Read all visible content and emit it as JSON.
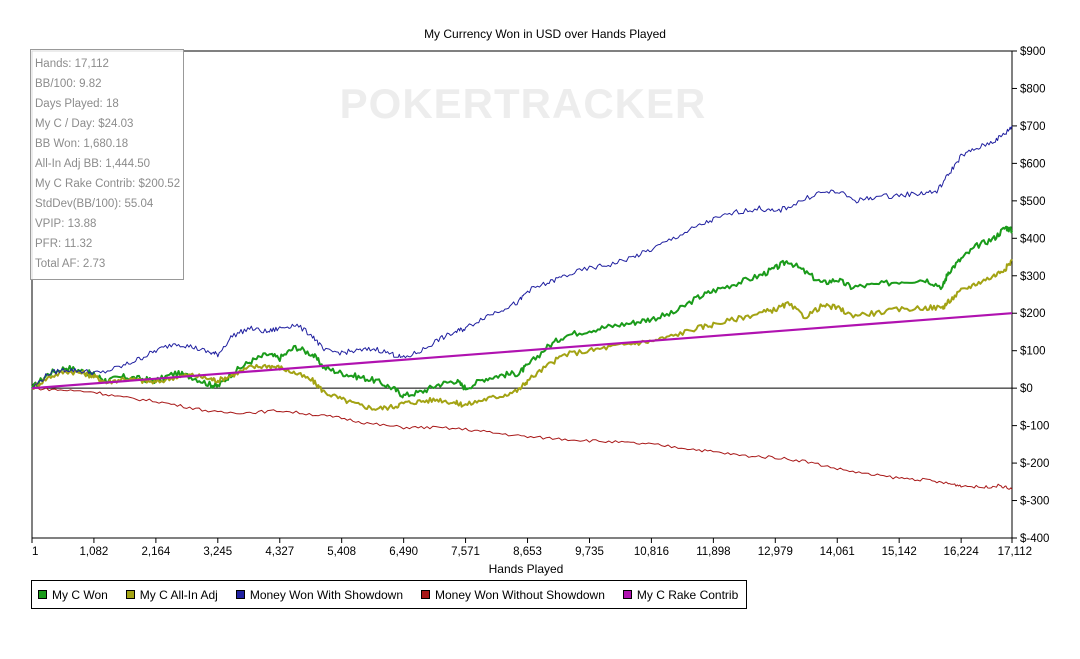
{
  "chart_data": {
    "type": "line",
    "title": "My Currency Won in USD over Hands Played",
    "xlabel": "Hands Played",
    "ylabel": "",
    "xlim": [
      1,
      17112
    ],
    "ylim": [
      -400,
      900
    ],
    "x_ticks": [
      1,
      1082,
      2164,
      3245,
      4327,
      5408,
      6490,
      7571,
      8653,
      9735,
      10816,
      11898,
      12979,
      14061,
      15142,
      16224,
      17112
    ],
    "x_tick_labels": [
      "1",
      "1,082",
      "2,164",
      "3,245",
      "4,327",
      "5,408",
      "6,490",
      "7,571",
      "8,653",
      "9,735",
      "10,816",
      "11,898",
      "12,979",
      "14,061",
      "15,142",
      "16,224",
      "17,112"
    ],
    "y_ticks": [
      -400,
      -300,
      -200,
      -100,
      0,
      100,
      200,
      300,
      400,
      500,
      600,
      700,
      800,
      900
    ],
    "y_tick_labels": [
      "$-400",
      "$-300",
      "$-200",
      "$-100",
      "$0",
      "$100",
      "$200",
      "$300",
      "$400",
      "$500",
      "$600",
      "$700",
      "$800",
      "$900"
    ],
    "legend_position": "bottom-left",
    "watermark": "POKERTRACKER",
    "series": [
      {
        "name": "My C Won",
        "color": "#1a9b1a",
        "x": [
          1,
          300,
          600,
          900,
          1100,
          1300,
          1600,
          1900,
          2164,
          2500,
          2800,
          3100,
          3245,
          3500,
          3800,
          4100,
          4327,
          4600,
          4900,
          5100,
          5408,
          5700,
          6000,
          6300,
          6490,
          6800,
          7100,
          7400,
          7571,
          7900,
          8200,
          8500,
          8653,
          9000,
          9300,
          9735,
          10100,
          10500,
          10816,
          11200,
          11600,
          11898,
          12300,
          12700,
          12979,
          13200,
          13500,
          13800,
          14061,
          14300,
          14700,
          15142,
          15600,
          15900,
          16000,
          16224,
          16500,
          16800,
          17000,
          17112
        ],
        "y": [
          0,
          40,
          55,
          45,
          35,
          20,
          30,
          25,
          20,
          40,
          30,
          10,
          5,
          40,
          70,
          90,
          80,
          110,
          90,
          55,
          40,
          30,
          20,
          0,
          -20,
          -10,
          10,
          20,
          0,
          25,
          35,
          40,
          60,
          110,
          140,
          155,
          165,
          175,
          185,
          200,
          240,
          260,
          280,
          300,
          320,
          340,
          310,
          280,
          290,
          270,
          275,
          285,
          290,
          270,
          310,
          345,
          380,
          400,
          430,
          420
        ]
      },
      {
        "name": "My C All-In Adj",
        "color": "#a3a314",
        "x": [
          1,
          300,
          600,
          900,
          1100,
          1300,
          1600,
          1900,
          2164,
          2500,
          2800,
          3100,
          3245,
          3500,
          3800,
          4100,
          4327,
          4600,
          4900,
          5100,
          5408,
          5700,
          6000,
          6300,
          6490,
          6800,
          7100,
          7400,
          7571,
          7900,
          8200,
          8500,
          8653,
          9000,
          9300,
          9735,
          10100,
          10500,
          10816,
          11200,
          11600,
          11898,
          12300,
          12700,
          12979,
          13200,
          13500,
          13800,
          14061,
          14300,
          14700,
          15142,
          15600,
          15900,
          16000,
          16224,
          16500,
          16800,
          17000,
          17112
        ],
        "y": [
          0,
          30,
          45,
          40,
          30,
          15,
          25,
          20,
          15,
          30,
          35,
          25,
          20,
          35,
          55,
          60,
          55,
          40,
          20,
          -10,
          -30,
          -45,
          -55,
          -50,
          -40,
          -35,
          -30,
          -40,
          -45,
          -30,
          -20,
          -5,
          20,
          60,
          90,
          100,
          110,
          120,
          125,
          140,
          160,
          170,
          185,
          200,
          210,
          225,
          190,
          220,
          215,
          195,
          200,
          210,
          215,
          215,
          230,
          260,
          280,
          300,
          320,
          340
        ]
      },
      {
        "name": "Money Won With Showdown",
        "color": "#2020a0",
        "x": [
          1,
          300,
          600,
          900,
          1200,
          1600,
          1900,
          2164,
          2500,
          2800,
          3100,
          3245,
          3500,
          3800,
          4100,
          4327,
          4600,
          4900,
          5100,
          5408,
          5700,
          6000,
          6300,
          6490,
          6800,
          7100,
          7400,
          7571,
          7900,
          8200,
          8500,
          8653,
          9000,
          9300,
          9735,
          10100,
          10500,
          10816,
          11200,
          11600,
          11898,
          12300,
          12700,
          12979,
          13300,
          13700,
          14061,
          14400,
          14700,
          15142,
          15500,
          15800,
          16000,
          16224,
          16500,
          16800,
          17000,
          17112
        ],
        "y": [
          0,
          40,
          50,
          45,
          40,
          60,
          80,
          100,
          120,
          110,
          95,
          90,
          140,
          160,
          150,
          160,
          170,
          140,
          100,
          95,
          100,
          105,
          90,
          80,
          100,
          130,
          150,
          160,
          190,
          210,
          230,
          260,
          280,
          300,
          320,
          330,
          350,
          370,
          400,
          430,
          450,
          470,
          480,
          470,
          490,
          520,
          525,
          500,
          510,
          515,
          520,
          525,
          570,
          620,
          640,
          660,
          680,
          700
        ]
      },
      {
        "name": "Money Won Without Showdown",
        "color": "#a81818",
        "x": [
          1,
          500,
          1082,
          1600,
          2164,
          2700,
          3245,
          3800,
          4327,
          4900,
          5408,
          5900,
          6490,
          7000,
          7571,
          8100,
          8653,
          9200,
          9735,
          10300,
          10816,
          11400,
          11898,
          12400,
          12979,
          13500,
          14061,
          14600,
          15142,
          15600,
          16000,
          16224,
          16600,
          16900,
          17112
        ],
        "y": [
          0,
          -5,
          -10,
          -25,
          -35,
          -50,
          -65,
          -65,
          -60,
          -70,
          -80,
          -95,
          -105,
          -105,
          -110,
          -120,
          -130,
          -135,
          -140,
          -145,
          -150,
          -160,
          -170,
          -180,
          -185,
          -195,
          -215,
          -230,
          -240,
          -245,
          -255,
          -260,
          -265,
          -260,
          -270
        ]
      },
      {
        "name": "My C Rake Contrib",
        "color": "#b012b0",
        "x": [
          1,
          17112
        ],
        "y": [
          0,
          200
        ]
      }
    ]
  },
  "stats": [
    "Hands: 17,112",
    "BB/100: 9.82",
    "Days Played: 18",
    "My C / Day: $24.03",
    "BB Won: 1,680.18",
    "All-In Adj BB: 1,444.50",
    "My C Rake Contrib: $200.52",
    "StdDev(BB/100): 55.04",
    "VPIP: 13.88",
    "PFR: 11.32",
    "Total AF: 2.73"
  ]
}
